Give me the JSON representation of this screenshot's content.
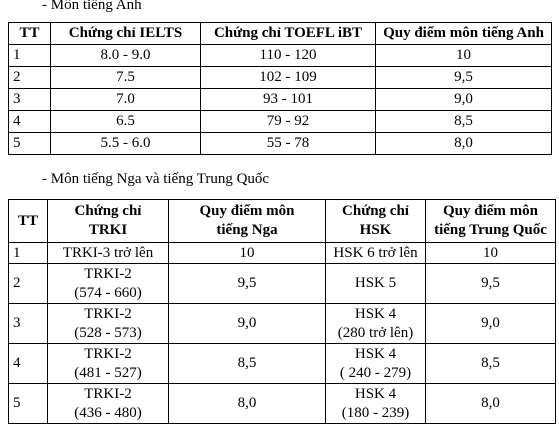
{
  "section_1": {
    "title": "- Môn tiếng Anh",
    "table": {
      "header": [
        "TT",
        "Chứng chỉ IELTS",
        "Chứng chỉ TOEFL iBT",
        "Quy điểm môn tiếng Anh"
      ],
      "rows": [
        [
          "1",
          "8.0 - 9.0",
          "110 - 120",
          "10"
        ],
        [
          "2",
          "7.5",
          "102 - 109",
          "9,5"
        ],
        [
          "3",
          "7.0",
          "93 - 101",
          "9,0"
        ],
        [
          "4",
          "6.5",
          "79 - 92",
          "8,5"
        ],
        [
          "5",
          "5.5 - 6.0",
          "55 - 78",
          "8,0"
        ]
      ]
    }
  },
  "section_2": {
    "title": "- Môn tiếng Nga và tiếng Trung Quốc",
    "table": {
      "header": [
        "TT",
        [
          "Chứng chỉ",
          "TRKI"
        ],
        [
          "Quy điểm môn",
          "tiếng Nga"
        ],
        [
          "Chứng chỉ",
          "HSK"
        ],
        [
          "Quy điểm môn",
          "tiếng Trung Quốc"
        ]
      ],
      "rows": [
        [
          "1",
          "TRKI-3 trở lên",
          "10",
          "HSK 6 trở lên",
          "10"
        ],
        [
          "2",
          [
            "TRKI-2",
            "(574 - 660)"
          ],
          "9,5",
          "HSK 5",
          "9,5"
        ],
        [
          "3",
          [
            "TRKI-2",
            "(528 - 573)"
          ],
          "9,0",
          [
            "HSK 4",
            "(280 trở lên)"
          ],
          "9,0"
        ],
        [
          "4",
          [
            "TRKI-2",
            "(481 - 527)"
          ],
          "8,5",
          [
            "HSK 4",
            "( 240 - 279)"
          ],
          "8,5"
        ],
        [
          "5",
          [
            "TRKI-2",
            "(436 - 480)"
          ],
          "8,0",
          [
            "HSK 4",
            "(180 - 239)"
          ],
          "8,0"
        ]
      ]
    }
  }
}
